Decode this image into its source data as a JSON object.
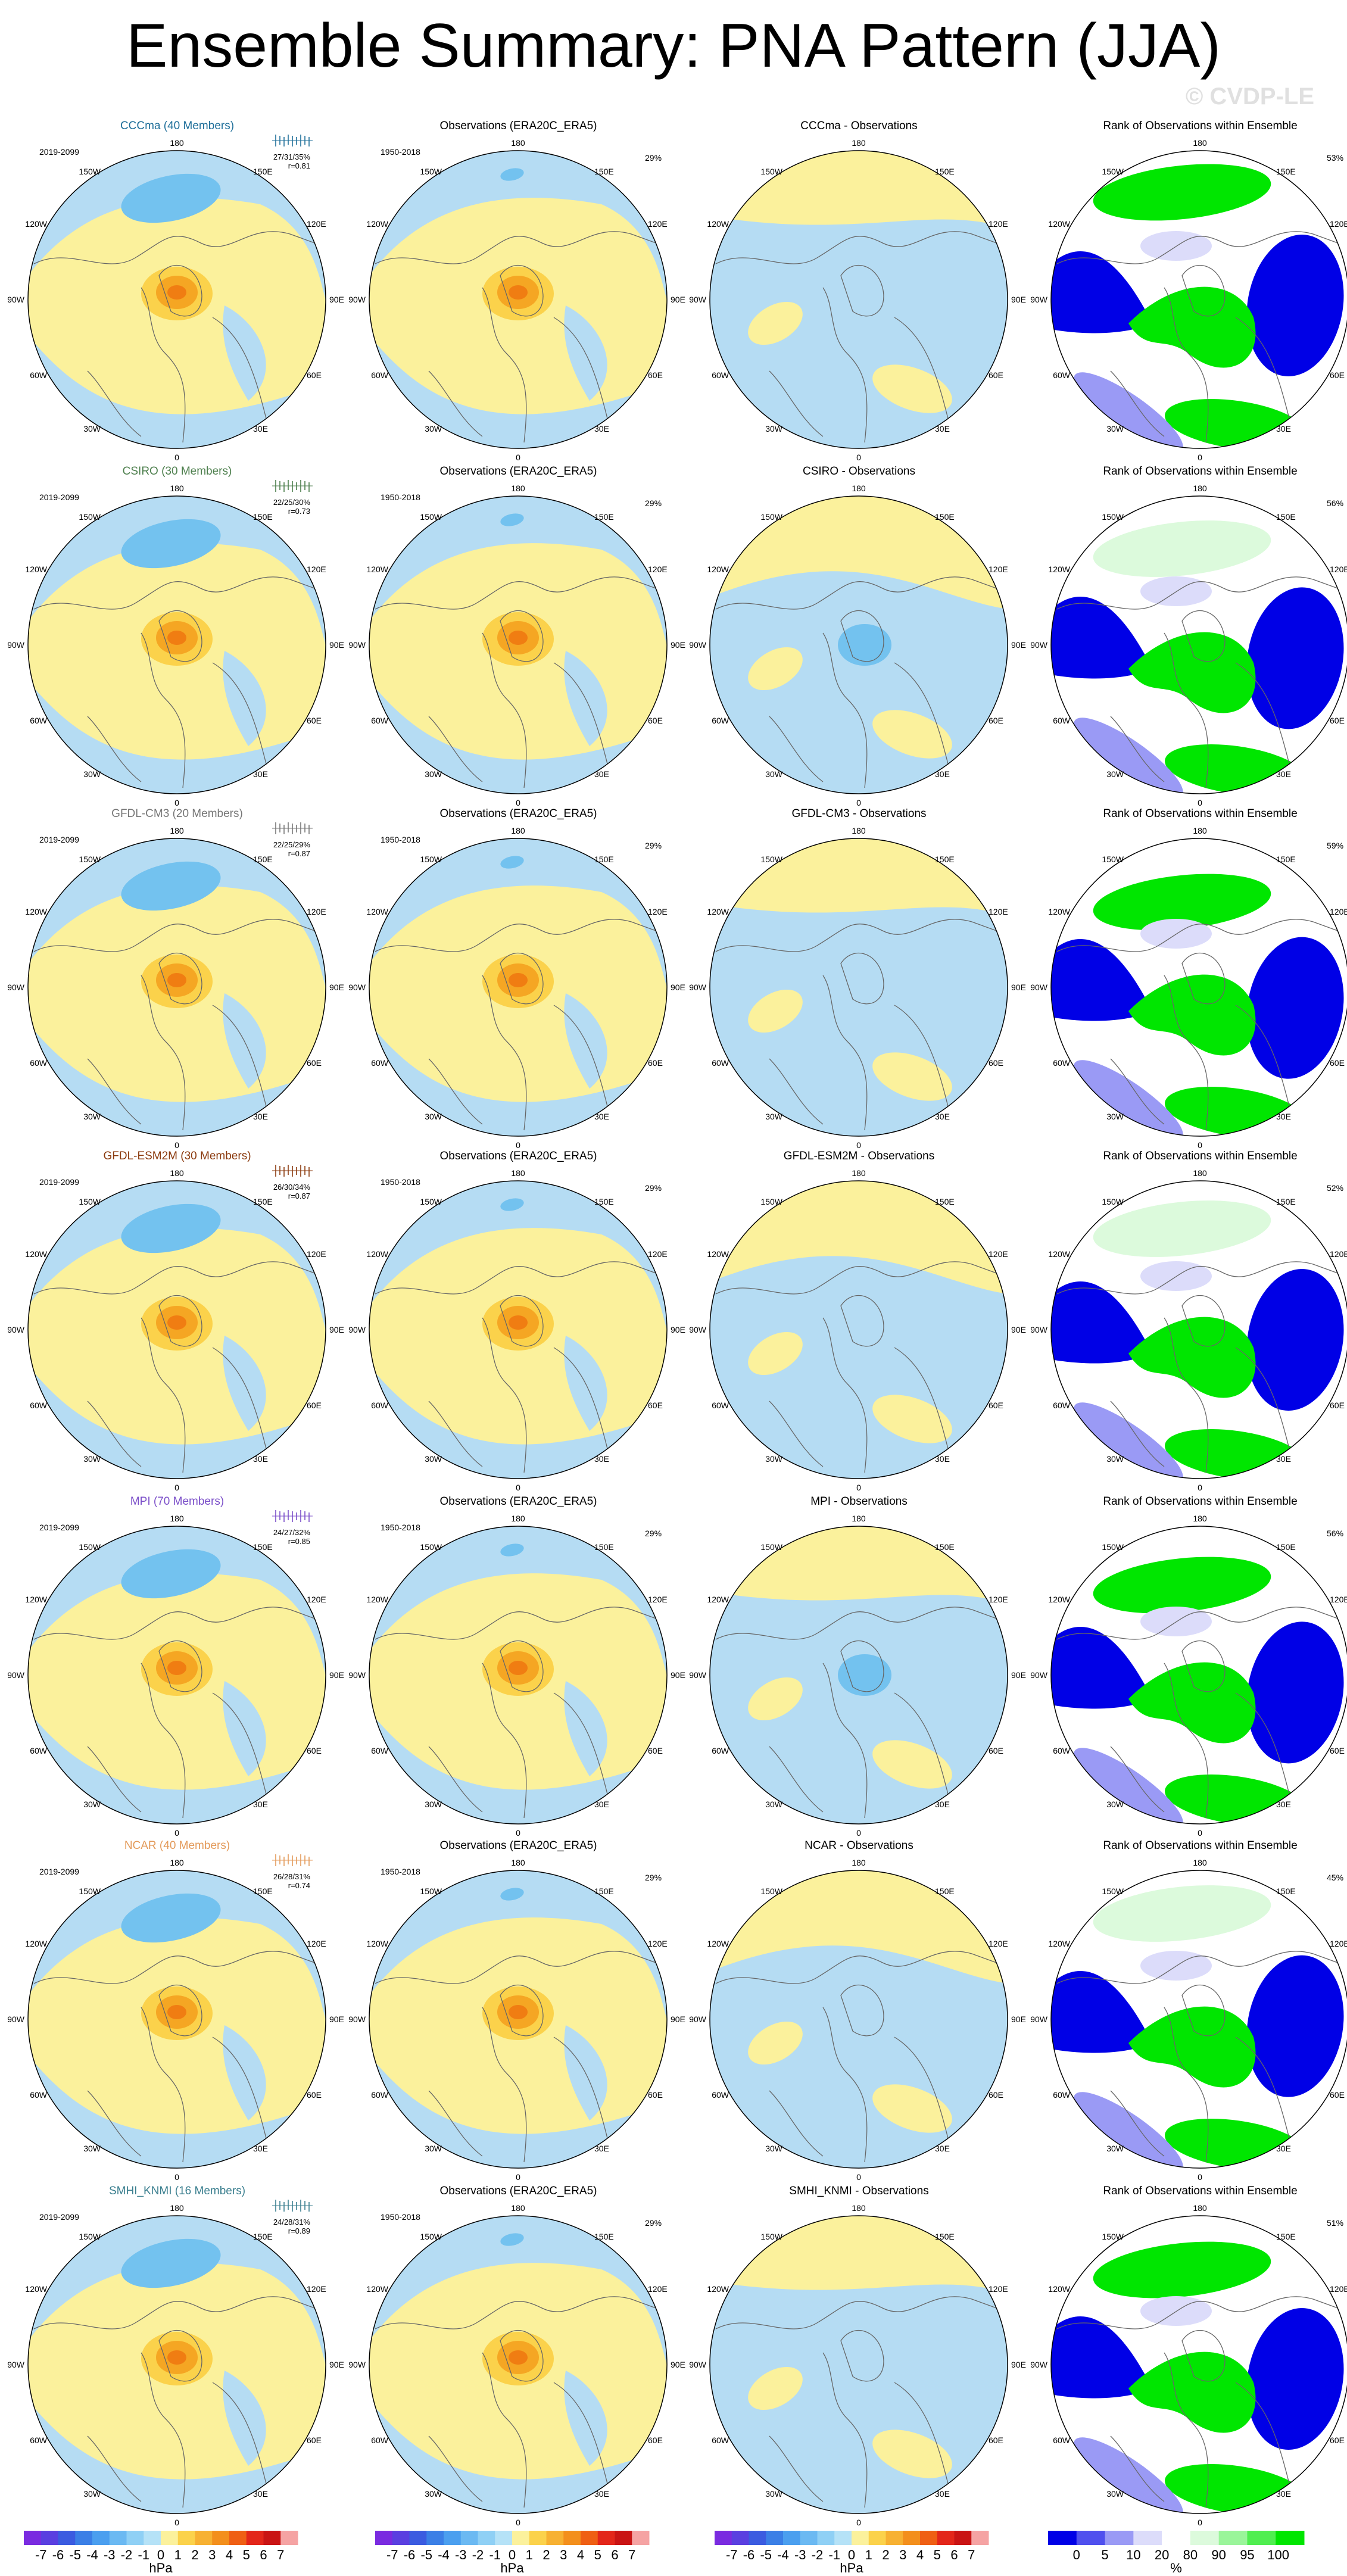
{
  "title": "Ensemble Summary: PNA Pattern (JJA)",
  "watermark": "© CVDP-LE",
  "colors": {
    "pos1": "#fbf19c",
    "pos2": "#fbd24b",
    "pos3": "#f5a623",
    "pos4": "#f07d12",
    "neg1": "#b5dcf3",
    "neg2": "#73c2ef",
    "neg3": "#3d9ee6",
    "rank_blue": "#0000e6",
    "rank_lblue": "#9a9af5",
    "rank_paleblue": "#dcdcfa",
    "rank_green": "#00e600",
    "rank_lgreen": "#9af59a",
    "rank_palegreen": "#dcfadc"
  },
  "lon_labels": {
    "top": "180",
    "bottom": "0",
    "tl": "150W",
    "tr": "150E",
    "ul": "120W",
    "ur": "120E",
    "l": "90W",
    "r": "90E",
    "ll": "60W",
    "lr": "60E",
    "bl": "30W",
    "br": "30E"
  },
  "rows": [
    {
      "model": "CCCma (40 Members)",
      "model_color": "#1f6f9a",
      "years": "2019-2099",
      "obs_years": "1950-2018",
      "obs_title": "Observations (ERA20C_ERA5)",
      "obs_pct": "29%",
      "stats": "27/31/35%",
      "r": "r=0.81",
      "diff_title": "CCCma - Observations",
      "rank_title": "Rank of Observations within Ensemble",
      "rank_pct": "53%"
    },
    {
      "model": "CSIRO (30 Members)",
      "model_color": "#4d7f4d",
      "years": "2019-2099",
      "obs_years": "1950-2018",
      "obs_title": "Observations (ERA20C_ERA5)",
      "obs_pct": "29%",
      "stats": "22/25/30%",
      "r": "r=0.73",
      "diff_title": "CSIRO - Observations",
      "rank_title": "Rank of Observations within Ensemble",
      "rank_pct": "56%"
    },
    {
      "model": "GFDL-CM3 (20 Members)",
      "model_color": "#777777",
      "years": "2019-2099",
      "obs_years": "1950-2018",
      "obs_title": "Observations (ERA20C_ERA5)",
      "obs_pct": "29%",
      "stats": "22/25/29%",
      "r": "r=0.87",
      "diff_title": "GFDL-CM3 - Observations",
      "rank_title": "Rank of Observations within Ensemble",
      "rank_pct": "59%"
    },
    {
      "model": "GFDL-ESM2M (30 Members)",
      "model_color": "#8b3a0e",
      "years": "2019-2099",
      "obs_years": "1950-2018",
      "obs_title": "Observations (ERA20C_ERA5)",
      "obs_pct": "29%",
      "stats": "26/30/34%",
      "r": "r=0.87",
      "diff_title": "GFDL-ESM2M - Observations",
      "rank_title": "Rank of Observations within Ensemble",
      "rank_pct": "52%"
    },
    {
      "model": "MPI (70 Members)",
      "model_color": "#7b4fc9",
      "years": "2019-2099",
      "obs_years": "1950-2018",
      "obs_title": "Observations (ERA20C_ERA5)",
      "obs_pct": "29%",
      "stats": "24/27/32%",
      "r": "r=0.85",
      "diff_title": "MPI - Observations",
      "rank_title": "Rank of Observations within Ensemble",
      "rank_pct": "56%"
    },
    {
      "model": "NCAR (40 Members)",
      "model_color": "#e39a5a",
      "years": "2019-2099",
      "obs_years": "1950-2018",
      "obs_title": "Observations (ERA20C_ERA5)",
      "obs_pct": "29%",
      "stats": "26/28/31%",
      "r": "r=0.74",
      "diff_title": "NCAR - Observations",
      "rank_title": "Rank of Observations within Ensemble",
      "rank_pct": "45%"
    },
    {
      "model": "SMHI_KNMI (16 Members)",
      "model_color": "#3b7f8f",
      "years": "2019-2099",
      "obs_years": "1950-2018",
      "obs_title": "Observations (ERA20C_ERA5)",
      "obs_pct": "29%",
      "stats": "24/28/31%",
      "r": "r=0.89",
      "diff_title": "SMHI_KNMI - Observations",
      "rank_title": "Rank of Observations within Ensemble",
      "rank_pct": "51%"
    }
  ],
  "colorbars": {
    "hpa": {
      "ticks": [
        "-7",
        "-6",
        "-5",
        "-4",
        "-3",
        "-2",
        "-1",
        "0",
        "1",
        "2",
        "3",
        "4",
        "5",
        "6",
        "7"
      ],
      "unit": "hPa",
      "colors": [
        "#7a2be0",
        "#5a3fe0",
        "#3b5be0",
        "#3b7fe6",
        "#4b9fef",
        "#6bb9f2",
        "#8fd0f5",
        "#b5e2f7",
        "#fbf19c",
        "#fbd24b",
        "#f7b132",
        "#f38f1c",
        "#ef5f14",
        "#e3261a",
        "#c91414",
        "#f5a3a3"
      ]
    },
    "rank": {
      "ticks": [
        "0",
        "5",
        "10",
        "20",
        "80",
        "90",
        "95",
        "100"
      ],
      "unit": "%",
      "colors": [
        "#0000e6",
        "#5050ee",
        "#9a9af5",
        "#dcdcfa",
        "#ffffff",
        "#dcfadc",
        "#9af59a",
        "#50ee50",
        "#00e600"
      ]
    }
  }
}
